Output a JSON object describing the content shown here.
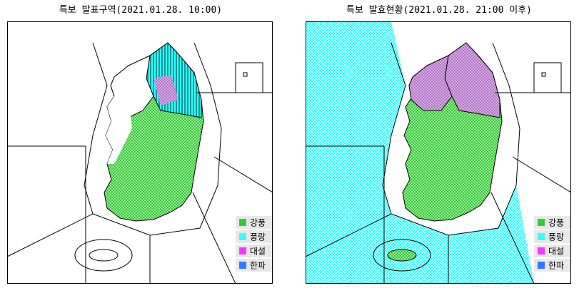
{
  "panels": [
    {
      "title": "특보 발표구역(2021.01.28. 10:00)",
      "legend": [
        {
          "label": "강풍",
          "color": "#33cc33"
        },
        {
          "label": "풍랑",
          "color": "#33ffff"
        },
        {
          "label": "대설",
          "color": "#ff33ff"
        },
        {
          "label": "한파",
          "color": "#3377ff"
        }
      ]
    },
    {
      "title": "특보 발효현황(2021.01.28. 21:00 이후)",
      "legend": [
        {
          "label": "강풍",
          "color": "#33cc33"
        },
        {
          "label": "풍랑",
          "color": "#33ffff"
        },
        {
          "label": "대설",
          "color": "#ff33ff"
        },
        {
          "label": "한파",
          "color": "#3377ff"
        }
      ]
    }
  ]
}
